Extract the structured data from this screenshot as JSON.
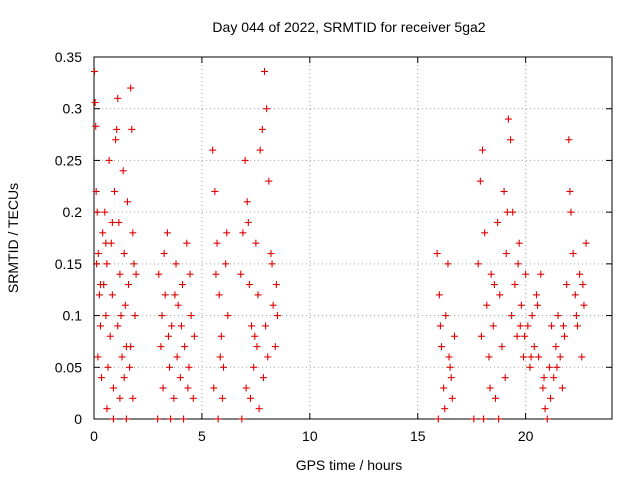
{
  "chart_data": {
    "type": "scatter",
    "title": "Day 044 of 2022, SRMTID for receiver 5ga2",
    "xlabel": "GPS time / hours",
    "ylabel": "SRMTID / TECUs",
    "xlim": [
      0,
      24
    ],
    "ylim": [
      0,
      0.35
    ],
    "xticks": [
      0,
      5,
      10,
      15,
      20
    ],
    "xtick_labels": [
      "0",
      "5",
      "10",
      "15",
      "20"
    ],
    "yticks": [
      0,
      0.05,
      0.1,
      0.15,
      0.2,
      0.25,
      0.3,
      0.35
    ],
    "ytick_labels": [
      "0",
      "0.05",
      "0.1",
      "0.15",
      "0.2",
      "0.25",
      "0.3",
      "0.35"
    ],
    "grid": true,
    "marker": "+",
    "color": "#e00000",
    "series": [
      {
        "name": "SRMTID",
        "points": [
          [
            0.02,
            0.336
          ],
          [
            0.05,
            0.306
          ],
          [
            0.08,
            0.283
          ],
          [
            0.1,
            0.22
          ],
          [
            0.15,
            0.2
          ],
          [
            0.2,
            0.16
          ],
          [
            0.25,
            0.12
          ],
          [
            0.3,
            0.09
          ],
          [
            0.12,
            0.15
          ],
          [
            0.18,
            0.06
          ],
          [
            0.35,
            0.04
          ],
          [
            0.4,
            0.18
          ],
          [
            0.45,
            0.13
          ],
          [
            0.5,
            0.2
          ],
          [
            0.55,
            0.1
          ],
          [
            0.6,
            0.15
          ],
          [
            0.65,
            0.05
          ],
          [
            0.7,
            0.25
          ],
          [
            0.75,
            0.08
          ],
          [
            0.8,
            0.17
          ],
          [
            0.85,
            0.12
          ],
          [
            0.9,
            0.03
          ],
          [
            0.95,
            0.22
          ],
          [
            1.0,
            0.27
          ],
          [
            1.05,
            0.28
          ],
          [
            1.1,
            0.31
          ],
          [
            1.15,
            0.19
          ],
          [
            1.2,
            0.14
          ],
          [
            1.25,
            0.1
          ],
          [
            1.3,
            0.06
          ],
          [
            1.35,
            0.24
          ],
          [
            1.4,
            0.16
          ],
          [
            1.45,
            0.11
          ],
          [
            1.5,
            0.07
          ],
          [
            1.55,
            0.21
          ],
          [
            1.6,
            0.13
          ],
          [
            1.65,
            0.05
          ],
          [
            1.7,
            0.32
          ],
          [
            1.75,
            0.28
          ],
          [
            1.8,
            0.18
          ],
          [
            1.85,
            0.15
          ],
          [
            1.9,
            0.1
          ],
          [
            1.95,
            0.14
          ],
          [
            0.6,
            0.01
          ],
          [
            0.9,
            0.0
          ],
          [
            1.2,
            0.02
          ],
          [
            1.5,
            0.0
          ],
          [
            1.8,
            0.02
          ],
          [
            0.3,
            0.13
          ],
          [
            0.55,
            0.17
          ],
          [
            0.85,
            0.19
          ],
          [
            1.1,
            0.09
          ],
          [
            1.4,
            0.04
          ],
          [
            1.7,
            0.07
          ],
          [
            2.95,
            0.0
          ],
          [
            3.0,
            0.14
          ],
          [
            3.1,
            0.07
          ],
          [
            3.2,
            0.03
          ],
          [
            3.3,
            0.12
          ],
          [
            3.4,
            0.18
          ],
          [
            3.5,
            0.05
          ],
          [
            3.6,
            0.09
          ],
          [
            3.7,
            0.02
          ],
          [
            3.8,
            0.15
          ],
          [
            3.9,
            0.11
          ],
          [
            4.0,
            0.04
          ],
          [
            4.1,
            0.13
          ],
          [
            4.2,
            0.07
          ],
          [
            4.3,
            0.17
          ],
          [
            4.4,
            0.05
          ],
          [
            4.5,
            0.1
          ],
          [
            4.6,
            0.02
          ],
          [
            4.65,
            0.08
          ],
          [
            3.25,
            0.16
          ],
          [
            3.55,
            0.0
          ],
          [
            3.85,
            0.06
          ],
          [
            4.15,
            0.0
          ],
          [
            4.45,
            0.14
          ],
          [
            3.15,
            0.1
          ],
          [
            3.45,
            0.08
          ],
          [
            3.75,
            0.12
          ],
          [
            4.05,
            0.09
          ],
          [
            4.35,
            0.03
          ],
          [
            5.5,
            0.26
          ],
          [
            5.6,
            0.22
          ],
          [
            5.7,
            0.17
          ],
          [
            5.8,
            0.12
          ],
          [
            5.9,
            0.08
          ],
          [
            6.0,
            0.05
          ],
          [
            6.1,
            0.15
          ],
          [
            6.2,
            0.1
          ],
          [
            5.55,
            0.03
          ],
          [
            5.75,
            0.0
          ],
          [
            5.95,
            0.02
          ],
          [
            6.15,
            0.18
          ],
          [
            5.65,
            0.14
          ],
          [
            5.85,
            0.06
          ],
          [
            6.8,
            0.14
          ],
          [
            6.9,
            0.18
          ],
          [
            7.0,
            0.25
          ],
          [
            7.1,
            0.21
          ],
          [
            7.2,
            0.13
          ],
          [
            7.3,
            0.09
          ],
          [
            7.4,
            0.05
          ],
          [
            7.5,
            0.17
          ],
          [
            7.6,
            0.12
          ],
          [
            7.7,
            0.26
          ],
          [
            7.8,
            0.28
          ],
          [
            7.9,
            0.336
          ],
          [
            8.0,
            0.3
          ],
          [
            8.1,
            0.23
          ],
          [
            8.2,
            0.16
          ],
          [
            8.3,
            0.11
          ],
          [
            8.4,
            0.07
          ],
          [
            8.5,
            0.1
          ],
          [
            6.85,
            0.0
          ],
          [
            7.05,
            0.03
          ],
          [
            7.25,
            0.02
          ],
          [
            7.45,
            0.08
          ],
          [
            7.65,
            0.01
          ],
          [
            7.85,
            0.04
          ],
          [
            8.05,
            0.06
          ],
          [
            8.25,
            0.15
          ],
          [
            8.45,
            0.13
          ],
          [
            7.15,
            0.19
          ],
          [
            7.55,
            0.07
          ],
          [
            7.95,
            0.09
          ],
          [
            15.9,
            0.16
          ],
          [
            16.0,
            0.12
          ],
          [
            16.1,
            0.07
          ],
          [
            16.2,
            0.03
          ],
          [
            16.3,
            0.1
          ],
          [
            16.4,
            0.15
          ],
          [
            16.5,
            0.05
          ],
          [
            16.6,
            0.02
          ],
          [
            16.7,
            0.08
          ],
          [
            15.95,
            0.0
          ],
          [
            16.25,
            0.01
          ],
          [
            16.55,
            0.04
          ],
          [
            16.05,
            0.09
          ],
          [
            16.45,
            0.06
          ],
          [
            17.6,
            0.0
          ],
          [
            17.8,
            0.15
          ],
          [
            17.9,
            0.23
          ],
          [
            18.0,
            0.26
          ],
          [
            18.1,
            0.18
          ],
          [
            18.2,
            0.11
          ],
          [
            18.3,
            0.06
          ],
          [
            18.4,
            0.14
          ],
          [
            18.5,
            0.09
          ],
          [
            18.6,
            0.02
          ],
          [
            18.7,
            0.19
          ],
          [
            18.8,
            0.12
          ],
          [
            18.9,
            0.07
          ],
          [
            19.0,
            0.22
          ],
          [
            19.1,
            0.16
          ],
          [
            19.2,
            0.29
          ],
          [
            19.3,
            0.27
          ],
          [
            19.4,
            0.2
          ],
          [
            19.5,
            0.13
          ],
          [
            19.6,
            0.08
          ],
          [
            19.7,
            0.17
          ],
          [
            19.8,
            0.11
          ],
          [
            19.9,
            0.06
          ],
          [
            20.0,
            0.14
          ],
          [
            20.1,
            0.09
          ],
          [
            20.2,
            0.05
          ],
          [
            20.3,
            0.1
          ],
          [
            20.4,
            0.07
          ],
          [
            20.5,
            0.12
          ],
          [
            20.6,
            0.06
          ],
          [
            20.7,
            0.14
          ],
          [
            20.8,
            0.03
          ],
          [
            20.9,
            0.01
          ],
          [
            21.0,
            0.0
          ],
          [
            21.1,
            0.05
          ],
          [
            21.2,
            0.09
          ],
          [
            21.3,
            0.04
          ],
          [
            21.4,
            0.07
          ],
          [
            21.5,
            0.1
          ],
          [
            21.6,
            0.06
          ],
          [
            21.7,
            0.03
          ],
          [
            21.8,
            0.08
          ],
          [
            21.9,
            0.13
          ],
          [
            22.0,
            0.27
          ],
          [
            22.1,
            0.2
          ],
          [
            22.2,
            0.16
          ],
          [
            22.3,
            0.12
          ],
          [
            22.4,
            0.09
          ],
          [
            22.5,
            0.14
          ],
          [
            22.6,
            0.06
          ],
          [
            22.7,
            0.11
          ],
          [
            22.8,
            0.17
          ],
          [
            18.05,
            0.0
          ],
          [
            18.35,
            0.03
          ],
          [
            18.75,
            0.0
          ],
          [
            19.05,
            0.04
          ],
          [
            19.35,
            0.1
          ],
          [
            19.65,
            0.15
          ],
          [
            19.95,
            0.08
          ],
          [
            20.25,
            0.06
          ],
          [
            20.55,
            0.11
          ],
          [
            20.85,
            0.04
          ],
          [
            21.15,
            0.02
          ],
          [
            21.45,
            0.05
          ],
          [
            21.75,
            0.09
          ],
          [
            22.05,
            0.22
          ],
          [
            22.35,
            0.1
          ],
          [
            22.65,
            0.13
          ],
          [
            17.95,
            0.08
          ],
          [
            18.55,
            0.13
          ],
          [
            19.15,
            0.2
          ],
          [
            19.75,
            0.09
          ]
        ]
      }
    ]
  }
}
